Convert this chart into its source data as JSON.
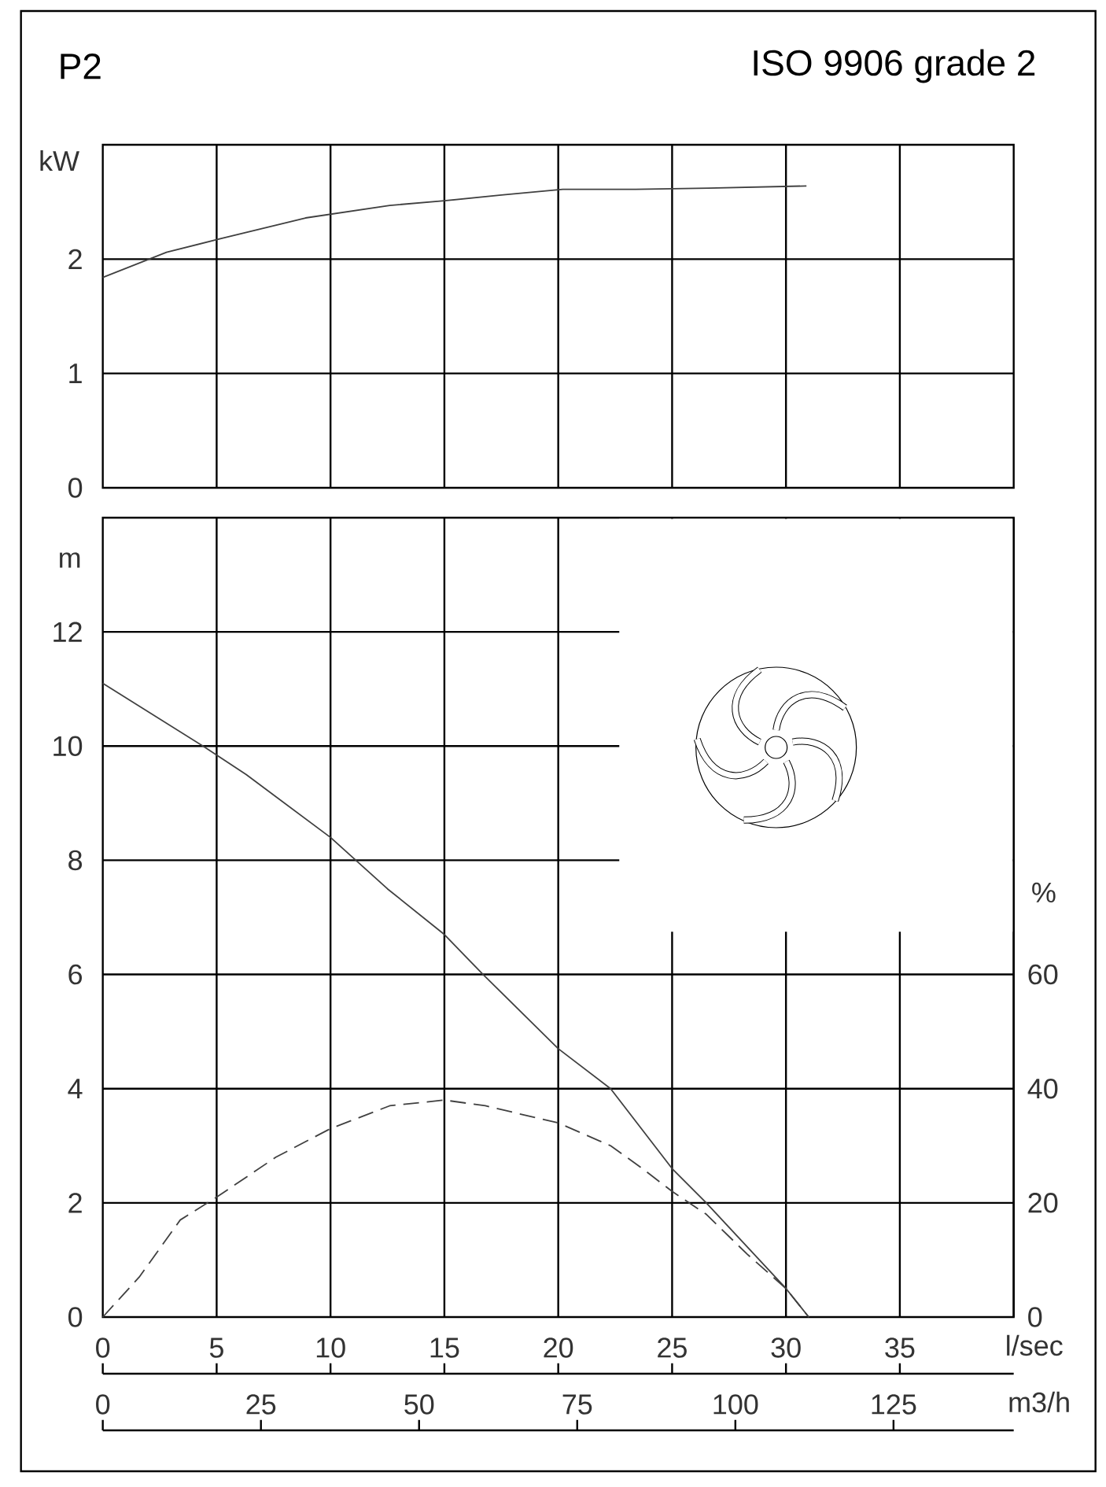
{
  "chart_data": [
    {
      "type": "line",
      "title": "P2",
      "annotations": [
        "ISO 9906 grade 2"
      ],
      "ylabel": "kW",
      "x": [
        0,
        2.8,
        5.2,
        8.9,
        12.6,
        15,
        17.5,
        20.2,
        23.4,
        26.6,
        30.9
      ],
      "values": [
        1.84,
        2.06,
        2.18,
        2.36,
        2.47,
        2.51,
        2.56,
        2.61,
        2.61,
        2.62,
        2.64
      ],
      "color": "#404040",
      "xlim": [
        0,
        40
      ],
      "xticks": [
        0,
        5,
        10,
        15,
        20,
        25,
        30,
        35
      ],
      "ylim": [
        0,
        3
      ],
      "yticks": [
        0,
        1,
        2
      ],
      "grid": true,
      "tick_labels": "y"
    },
    {
      "type": "line",
      "xlabel": "l/sec",
      "x2label": "m3/h",
      "ylabel": "m",
      "y2label": "%",
      "line_style": "solid",
      "series": [
        {
          "color": "#404040",
          "x": [
            0,
            4.4,
            6.3,
            10,
            12.5,
            15,
            16.7,
            20,
            22.3,
            25,
            26.5,
            30,
            31
          ],
          "values": [
            11.1,
            10.0,
            9.5,
            8.4,
            7.5,
            6.7,
            6.0,
            4.7,
            4.0,
            2.6,
            2.0,
            0.5,
            0
          ]
        },
        {
          "color": "#404040",
          "axis": "y2",
          "line_style": "dashed",
          "x": [
            0,
            1.6,
            3.4,
            5,
            7.6,
            10,
            12.6,
            15,
            16.8,
            20,
            22.3,
            23.7,
            25,
            26.5,
            28.3,
            30,
            31
          ],
          "values": [
            0,
            7,
            17,
            21,
            28,
            33,
            37,
            38,
            37,
            34,
            30,
            26,
            22,
            18,
            11,
            5,
            0
          ]
        }
      ],
      "xlim": [
        0,
        40
      ],
      "xticks": [
        0,
        5,
        10,
        15,
        20,
        25,
        30,
        35
      ],
      "x2lim": [
        0,
        144
      ],
      "x2ticks": [
        0,
        25,
        50,
        75,
        100,
        125
      ],
      "ylim": [
        0,
        14
      ],
      "yticks": [
        0,
        2,
        4,
        6,
        8,
        10,
        12
      ],
      "y2lim": [
        0,
        140
      ],
      "y2ticks": [
        0,
        20,
        40,
        60
      ],
      "grid": true
    }
  ]
}
